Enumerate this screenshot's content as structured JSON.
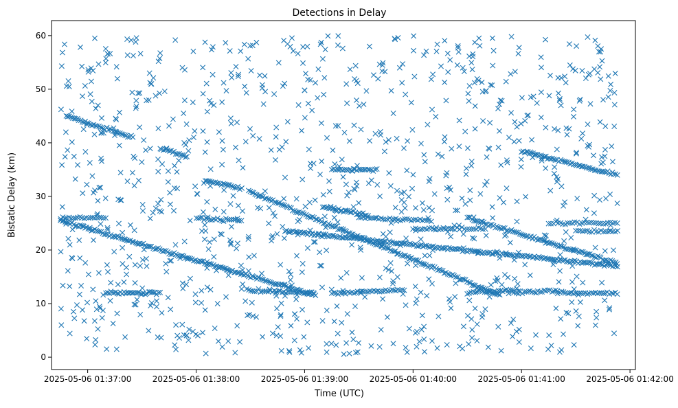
{
  "chart_data": {
    "type": "scatter",
    "title": "Detections in Delay",
    "xlabel": "Time (UTC)",
    "ylabel": "Bistatic Delay (km)",
    "x_tick_labels": [
      "2025-05-06 01:37:00",
      "2025-05-06 01:38:00",
      "2025-05-06 01:39:00",
      "2025-05-06 01:40:00",
      "2025-05-06 01:41:00",
      "2025-05-06 01:42:00"
    ],
    "y_tick_labels": [
      "0",
      "10",
      "20",
      "30",
      "40",
      "50",
      "60"
    ],
    "x_range": [
      "2025-05-06 01:36:40",
      "2025-05-06 01:42:03"
    ],
    "y_range": [
      -2.3,
      62.8
    ],
    "marker": "x",
    "grid": false,
    "legend": "none",
    "colors": {
      "series": "#1f77b4",
      "axes": "#000000",
      "background": "#ffffff"
    },
    "tracks": [
      {
        "start": "2025-05-06 01:36:45",
        "end": "2025-05-06 01:39:06",
        "delay_start": 25.5,
        "delay_end": 11.5,
        "spacing_s": 0.9
      },
      {
        "start": "2025-05-06 01:38:29",
        "end": "2025-05-06 01:40:48",
        "delay_start": 31.0,
        "delay_end": 11.5,
        "spacing_s": 0.9
      },
      {
        "start": "2025-05-06 01:38:49",
        "end": "2025-05-06 01:41:53",
        "delay_start": 23.5,
        "delay_end": 17.0,
        "spacing_s": 0.9
      },
      {
        "start": "2025-05-06 01:39:10",
        "end": "2025-05-06 01:39:35",
        "delay_start": 28.0,
        "delay_end": 26.5,
        "spacing_s": 0.9
      },
      {
        "start": "2025-05-06 01:40:30",
        "end": "2025-05-06 01:41:53",
        "delay_start": 26.0,
        "delay_end": 17.5,
        "spacing_s": 0.9
      },
      {
        "start": "2025-05-06 01:41:00",
        "end": "2025-05-06 01:41:53",
        "delay_start": 38.5,
        "delay_end": 34.0,
        "spacing_s": 0.9
      },
      {
        "start": "2025-05-06 01:36:48",
        "end": "2025-05-06 01:37:25",
        "delay_start": 45.0,
        "delay_end": 41.0,
        "spacing_s": 0.9
      },
      {
        "start": "2025-05-06 01:37:40",
        "end": "2025-05-06 01:37:55",
        "delay_start": 39.0,
        "delay_end": 37.5,
        "spacing_s": 0.9
      },
      {
        "start": "2025-05-06 01:38:05",
        "end": "2025-05-06 01:38:25",
        "delay_start": 33.0,
        "delay_end": 31.5,
        "spacing_s": 0.9
      },
      {
        "start": "2025-05-06 01:36:45",
        "end": "2025-05-06 01:37:10",
        "delay_start": 26.0,
        "delay_end": 26.0,
        "spacing_s": 1.2
      },
      {
        "start": "2025-05-06 01:37:10",
        "end": "2025-05-06 01:37:40",
        "delay_start": 12.0,
        "delay_end": 12.0,
        "spacing_s": 0.9
      },
      {
        "start": "2025-05-06 01:38:00",
        "end": "2025-05-06 01:38:25",
        "delay_start": 26.0,
        "delay_end": 25.5,
        "spacing_s": 1.1
      },
      {
        "start": "2025-05-06 01:38:28",
        "end": "2025-05-06 01:39:05",
        "delay_start": 12.5,
        "delay_end": 12.0,
        "spacing_s": 1.1
      },
      {
        "start": "2025-05-06 01:39:15",
        "end": "2025-05-06 01:39:40",
        "delay_start": 35.0,
        "delay_end": 35.0,
        "spacing_s": 1.0
      },
      {
        "start": "2025-05-06 01:39:15",
        "end": "2025-05-06 01:39:55",
        "delay_start": 12.0,
        "delay_end": 12.5,
        "spacing_s": 1.1
      },
      {
        "start": "2025-05-06 01:39:30",
        "end": "2025-05-06 01:40:10",
        "delay_start": 26.0,
        "delay_end": 25.5,
        "spacing_s": 1.2
      },
      {
        "start": "2025-05-06 01:40:00",
        "end": "2025-05-06 01:40:40",
        "delay_start": 24.0,
        "delay_end": 24.0,
        "spacing_s": 1.3
      },
      {
        "start": "2025-05-06 01:40:30",
        "end": "2025-05-06 01:40:55",
        "delay_start": 12.0,
        "delay_end": 12.5,
        "spacing_s": 1.1
      },
      {
        "start": "2025-05-06 01:40:55",
        "end": "2025-05-06 01:41:20",
        "delay_start": 12.0,
        "delay_end": 12.5,
        "spacing_s": 1.1
      },
      {
        "start": "2025-05-06 01:41:20",
        "end": "2025-05-06 01:41:53",
        "delay_start": 12.0,
        "delay_end": 12.0,
        "spacing_s": 1.1
      },
      {
        "start": "2025-05-06 01:41:15",
        "end": "2025-05-06 01:41:53",
        "delay_start": 25.0,
        "delay_end": 25.0,
        "spacing_s": 1.3
      },
      {
        "start": "2025-05-06 01:41:30",
        "end": "2025-05-06 01:41:53",
        "delay_start": 23.5,
        "delay_end": 23.5,
        "spacing_s": 1.3
      }
    ],
    "background_clutter": {
      "count": 1050,
      "time_start": "2025-05-06 01:36:45",
      "time_end": "2025-05-06 01:41:53",
      "delay_min": 0.5,
      "delay_max": 60.0
    }
  }
}
